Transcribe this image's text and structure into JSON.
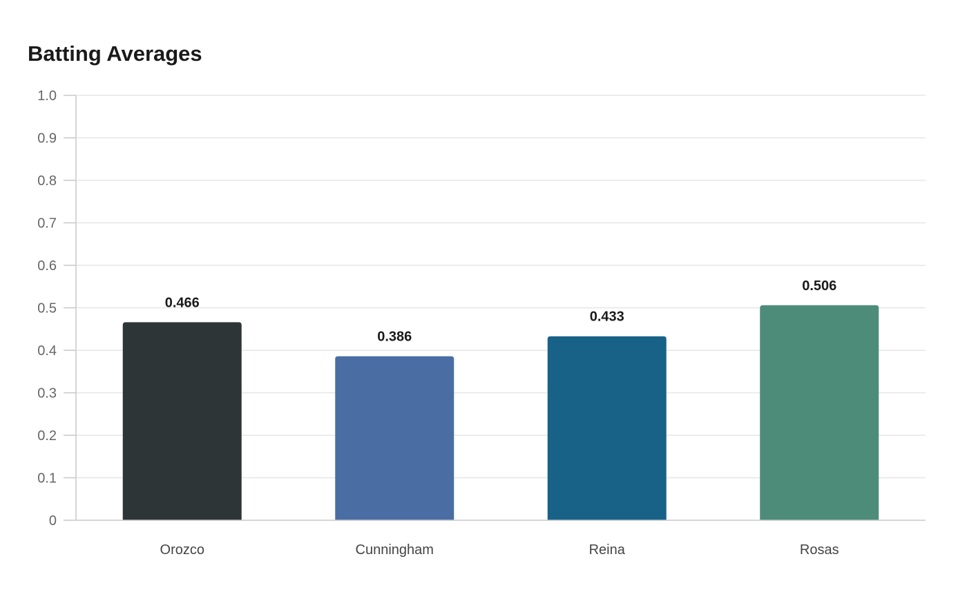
{
  "chart_data": {
    "type": "bar",
    "title": "Batting Averages",
    "xlabel": "",
    "ylabel": "",
    "categories": [
      "Orozco",
      "Cunningham",
      "Reina",
      "Rosas"
    ],
    "values": [
      0.466,
      0.386,
      0.433,
      0.506
    ],
    "value_labels": [
      "0.466",
      "0.386",
      "0.433",
      "0.506"
    ],
    "colors": [
      "#2e3537",
      "#4a6ea3",
      "#186287",
      "#4e8c7a"
    ],
    "ylim": [
      0,
      1.0
    ],
    "yticks": [
      0,
      0.1,
      0.2,
      0.3,
      0.4,
      0.5,
      0.6,
      0.7,
      0.8,
      0.9,
      1.0
    ],
    "ytick_labels": [
      "0",
      "0.1",
      "0.2",
      "0.3",
      "0.4",
      "0.5",
      "0.6",
      "0.7",
      "0.8",
      "0.9",
      "1.0"
    ],
    "grid": true,
    "legend": "none"
  }
}
